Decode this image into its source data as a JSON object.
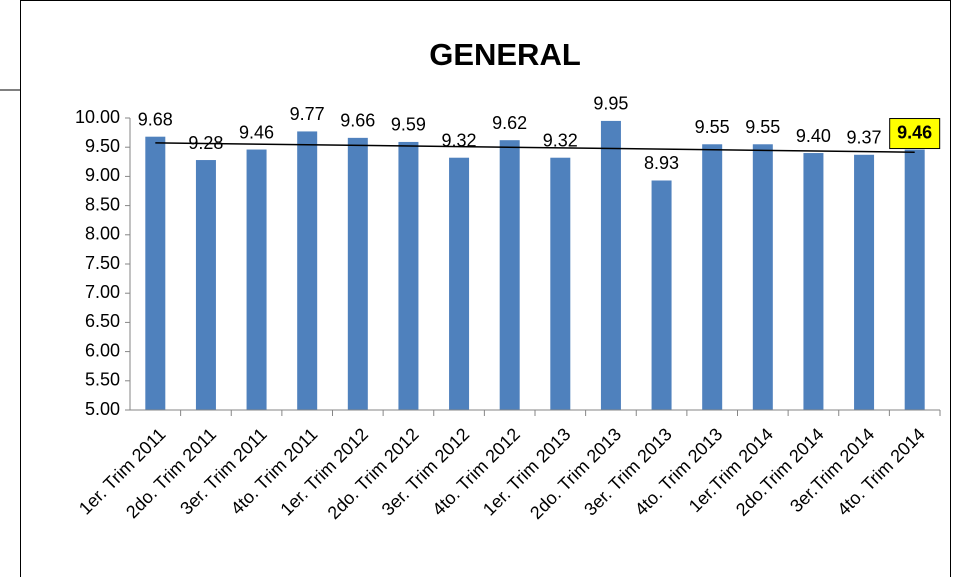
{
  "chart_data": {
    "type": "bar",
    "title": "GENERAL",
    "categories": [
      "1er. Trim 2011",
      "2do. Trim 2011",
      "3er. Trim 2011",
      "4to. Trim 2011",
      "1er. Trim 2012",
      "2do. Trim 2012",
      "3er. Trim 2012",
      "4to. Trim 2012",
      "1er. Trim 2013",
      "2do. Trim 2013",
      "3er. Trim 2013",
      "4to. Trim 2013",
      "1er.Trim 2014",
      "2do.Trim 2014",
      "3er.Trim 2014",
      "4to. Trim 2014"
    ],
    "values": [
      9.68,
      9.28,
      9.46,
      9.77,
      9.66,
      9.59,
      9.32,
      9.62,
      9.32,
      9.95,
      8.93,
      9.55,
      9.55,
      9.4,
      9.37,
      9.46
    ],
    "value_labels": [
      "9.68",
      "9.28",
      "9.46",
      "9.77",
      "9.66",
      "9.59",
      "9.32",
      "9.62",
      "9.32",
      "9.95",
      "8.93",
      "9.55",
      "9.55",
      "9.40",
      "9.37",
      "9.46"
    ],
    "color": "#4f81bd",
    "ylim": [
      5,
      10
    ],
    "yticks": [
      {
        "value": 5,
        "label": "5.00"
      },
      {
        "value": 5.5,
        "label": "5.50"
      },
      {
        "value": 6,
        "label": "6.00"
      },
      {
        "value": 6.5,
        "label": "6.50"
      },
      {
        "value": 7,
        "label": "7.00"
      },
      {
        "value": 7.5,
        "label": "7.50"
      },
      {
        "value": 8,
        "label": "8.00"
      },
      {
        "value": 8.5,
        "label": "8.50"
      },
      {
        "value": 9,
        "label": "9.00"
      },
      {
        "value": 9.5,
        "label": "9.50"
      },
      {
        "value": 10,
        "label": "10.00"
      }
    ],
    "grid": false,
    "trendline": "linear",
    "highlighted_label": 15,
    "highlight_color": "#ffff00"
  }
}
